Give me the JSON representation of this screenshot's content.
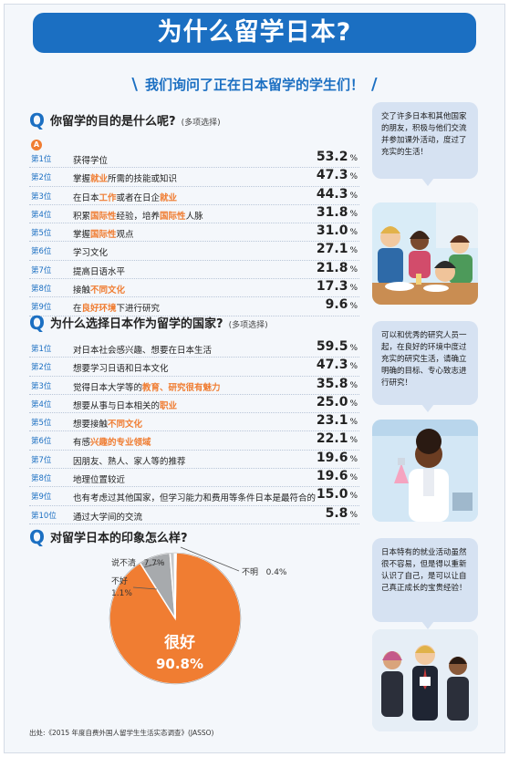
{
  "title": "为什么留学日本?",
  "subtitle": "我们询问了正在日本留学的学生们！",
  "q1": {
    "q": "Q",
    "question": "你留学的目的是什么呢?",
    "note": "(多项选择)",
    "badge": "A",
    "rows": [
      {
        "rank": "第1位",
        "parts": [
          {
            "t": "获得学位",
            "h": false
          }
        ],
        "pct": "53.2",
        "unit": "%"
      },
      {
        "rank": "第2位",
        "parts": [
          {
            "t": "掌握",
            "h": false
          },
          {
            "t": "就业",
            "h": true
          },
          {
            "t": "所需的技能或知识",
            "h": false
          }
        ],
        "pct": "47.3",
        "unit": "%"
      },
      {
        "rank": "第3位",
        "parts": [
          {
            "t": "在日本",
            "h": false
          },
          {
            "t": "工作",
            "h": true
          },
          {
            "t": "或者在日企",
            "h": false
          },
          {
            "t": "就业",
            "h": true
          }
        ],
        "pct": "44.3",
        "unit": "%"
      },
      {
        "rank": "第4位",
        "parts": [
          {
            "t": "积累",
            "h": false
          },
          {
            "t": "国际性",
            "h": true
          },
          {
            "t": "经验，培养",
            "h": false
          },
          {
            "t": "国际性",
            "h": true
          },
          {
            "t": "人脉",
            "h": false
          }
        ],
        "pct": "31.8",
        "unit": "%"
      },
      {
        "rank": "第5位",
        "parts": [
          {
            "t": "掌握",
            "h": false
          },
          {
            "t": "国际性",
            "h": true
          },
          {
            "t": "观点",
            "h": false
          }
        ],
        "pct": "31.0",
        "unit": "%"
      },
      {
        "rank": "第6位",
        "parts": [
          {
            "t": "学习文化",
            "h": false
          }
        ],
        "pct": "27.1",
        "unit": "%"
      },
      {
        "rank": "第7位",
        "parts": [
          {
            "t": "提高日语水平",
            "h": false
          }
        ],
        "pct": "21.8",
        "unit": "%"
      },
      {
        "rank": "第8位",
        "parts": [
          {
            "t": "接触",
            "h": false
          },
          {
            "t": "不同文化",
            "h": true
          }
        ],
        "pct": "17.3",
        "unit": "%"
      },
      {
        "rank": "第9位",
        "parts": [
          {
            "t": "在",
            "h": false
          },
          {
            "t": "良好环境",
            "h": true
          },
          {
            "t": "下进行研究",
            "h": false
          }
        ],
        "pct": "9.6",
        "unit": "%"
      }
    ]
  },
  "q2": {
    "q": "Q",
    "question": "为什么选择日本作为留学的国家?",
    "note": "(多项选择)",
    "rows": [
      {
        "rank": "第1位",
        "parts": [
          {
            "t": "对日本社会感兴趣、想要在日本生活",
            "h": false
          }
        ],
        "pct": "59.5",
        "unit": "%"
      },
      {
        "rank": "第2位",
        "parts": [
          {
            "t": "想要学习日语和日本文化",
            "h": false
          }
        ],
        "pct": "47.3",
        "unit": "%"
      },
      {
        "rank": "第3位",
        "parts": [
          {
            "t": "觉得日本大学等的",
            "h": false
          },
          {
            "t": "教育、研究很有魅力",
            "h": true
          }
        ],
        "pct": "35.8",
        "unit": "%"
      },
      {
        "rank": "第4位",
        "parts": [
          {
            "t": "想要从事与日本相关的",
            "h": false
          },
          {
            "t": "职业",
            "h": true
          }
        ],
        "pct": "25.0",
        "unit": "%"
      },
      {
        "rank": "第5位",
        "parts": [
          {
            "t": "想要接触",
            "h": false
          },
          {
            "t": "不同文化",
            "h": true
          }
        ],
        "pct": "23.1",
        "unit": "%"
      },
      {
        "rank": "第6位",
        "parts": [
          {
            "t": "有感",
            "h": false
          },
          {
            "t": "兴趣的专业领域",
            "h": true
          }
        ],
        "pct": "22.1",
        "unit": "%"
      },
      {
        "rank": "第7位",
        "parts": [
          {
            "t": "因朋友、熟人、家人等的推荐",
            "h": false
          }
        ],
        "pct": "19.6",
        "unit": "%"
      },
      {
        "rank": "第8位",
        "parts": [
          {
            "t": "地理位置较近",
            "h": false
          }
        ],
        "pct": "19.6",
        "unit": "%"
      },
      {
        "rank": "第9位",
        "parts": [
          {
            "t": "也有考虑过其他国家，但学习能力和费用等条件日本是最符合的",
            "h": false
          }
        ],
        "pct": "15.0",
        "unit": "%"
      },
      {
        "rank": "第10位",
        "parts": [
          {
            "t": "通过大学间的交流",
            "h": false
          }
        ],
        "pct": "5.8",
        "unit": "%"
      }
    ]
  },
  "q3": {
    "q": "Q",
    "question": "对留学日本的印象怎么样?"
  },
  "chart_data": {
    "type": "pie",
    "slices": [
      {
        "label": "很好",
        "value": 90.8,
        "display": "90.8%",
        "color": "#f07d32"
      },
      {
        "label": "说不清",
        "value": 7.7,
        "display": "7.7%",
        "color": "#a7aaad"
      },
      {
        "label": "不好",
        "value": 1.1,
        "display": "1.1%",
        "color": "#c6c8ca"
      },
      {
        "label": "不明",
        "value": 0.4,
        "display": "0.4%",
        "color": "#ffffff"
      }
    ]
  },
  "bubbles": [
    "交了许多日本和其他国家的朋友，积极与他们交流并参加课外活动，度过了充实的生活！",
    "可以和优秀的研究人员一起，在良好的环境中度过充实的研究生活，请确立明确的目标、专心致志进行研究！",
    "日本特有的就业活动虽然很不容易，但是得以重新认识了自己，是可以让自己真正成长的宝贵经验！"
  ],
  "source": "出处:《2015 年度自费外国人留学生生活实态调查》(JASSO)",
  "colors": {
    "blue": "#1b6fc2",
    "orange": "#f07d32",
    "bubble": "#d6e2f2"
  }
}
